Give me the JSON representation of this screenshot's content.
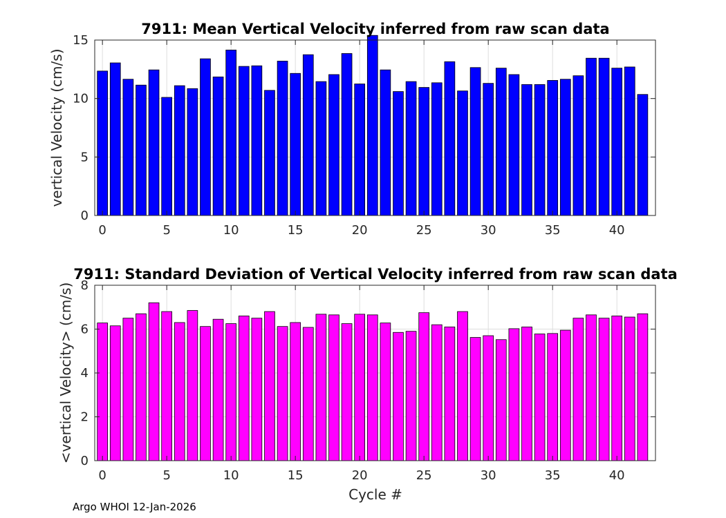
{
  "figure": {
    "footer": "Argo WHOI 12-Jan-2026"
  },
  "chart_data": [
    {
      "type": "bar",
      "title": "7911: Mean Vertical Velocity inferred from raw scan data",
      "xlabel": "",
      "ylabel": "vertical Velocity (cm/s)",
      "bar_color": "#0000FF",
      "edge_color": "#000000",
      "grid": true,
      "xlim": [
        -0.6,
        43.0
      ],
      "ylim": [
        0,
        15
      ],
      "xticks": [
        0,
        5,
        10,
        15,
        20,
        25,
        30,
        35,
        40
      ],
      "yticks": [
        0,
        5,
        10,
        15
      ],
      "x": [
        0,
        1,
        2,
        3,
        4,
        5,
        6,
        7,
        8,
        9,
        10,
        11,
        12,
        13,
        14,
        15,
        16,
        17,
        18,
        19,
        20,
        21,
        22,
        23,
        24,
        25,
        26,
        27,
        28,
        29,
        30,
        31,
        32,
        33,
        34,
        35,
        36,
        37,
        38,
        39,
        40,
        41,
        42
      ],
      "values": [
        12.35,
        13.05,
        11.65,
        11.15,
        12.45,
        10.1,
        11.1,
        10.85,
        13.4,
        11.85,
        14.15,
        12.75,
        12.8,
        10.7,
        13.2,
        12.15,
        13.75,
        11.45,
        12.05,
        13.85,
        11.25,
        15.4,
        12.45,
        10.6,
        11.45,
        10.95,
        11.35,
        13.15,
        10.65,
        12.65,
        11.3,
        12.6,
        12.05,
        11.2,
        11.2,
        11.55,
        11.65,
        11.95,
        13.45,
        13.45,
        12.6,
        12.7,
        10.35
      ]
    },
    {
      "type": "bar",
      "title": "7911: Standard Deviation of Vertical Velocity inferred from raw scan data",
      "xlabel": "Cycle #",
      "ylabel": "<vertical Velocity> (cm/s)",
      "bar_color": "#FF00FF",
      "edge_color": "#000000",
      "grid": true,
      "xlim": [
        -0.6,
        43.0
      ],
      "ylim": [
        0,
        8
      ],
      "xticks": [
        0,
        5,
        10,
        15,
        20,
        25,
        30,
        35,
        40
      ],
      "yticks": [
        0,
        2,
        4,
        6,
        8
      ],
      "x": [
        0,
        1,
        2,
        3,
        4,
        5,
        6,
        7,
        8,
        9,
        10,
        11,
        12,
        13,
        14,
        15,
        16,
        17,
        18,
        19,
        20,
        21,
        22,
        23,
        24,
        25,
        26,
        27,
        28,
        29,
        30,
        31,
        32,
        33,
        34,
        35,
        36,
        37,
        38,
        39,
        40,
        41,
        42
      ],
      "values": [
        6.28,
        6.15,
        6.5,
        6.7,
        7.2,
        6.8,
        6.3,
        6.85,
        6.12,
        6.45,
        6.25,
        6.6,
        6.5,
        6.8,
        6.12,
        6.3,
        6.08,
        6.68,
        6.65,
        6.25,
        6.68,
        6.65,
        6.28,
        5.85,
        5.9,
        6.75,
        6.2,
        6.1,
        6.8,
        5.62,
        5.7,
        5.52,
        6.02,
        6.1,
        5.78,
        5.8,
        5.95,
        6.5,
        6.65,
        6.5,
        6.6,
        6.55,
        6.7
      ]
    }
  ]
}
